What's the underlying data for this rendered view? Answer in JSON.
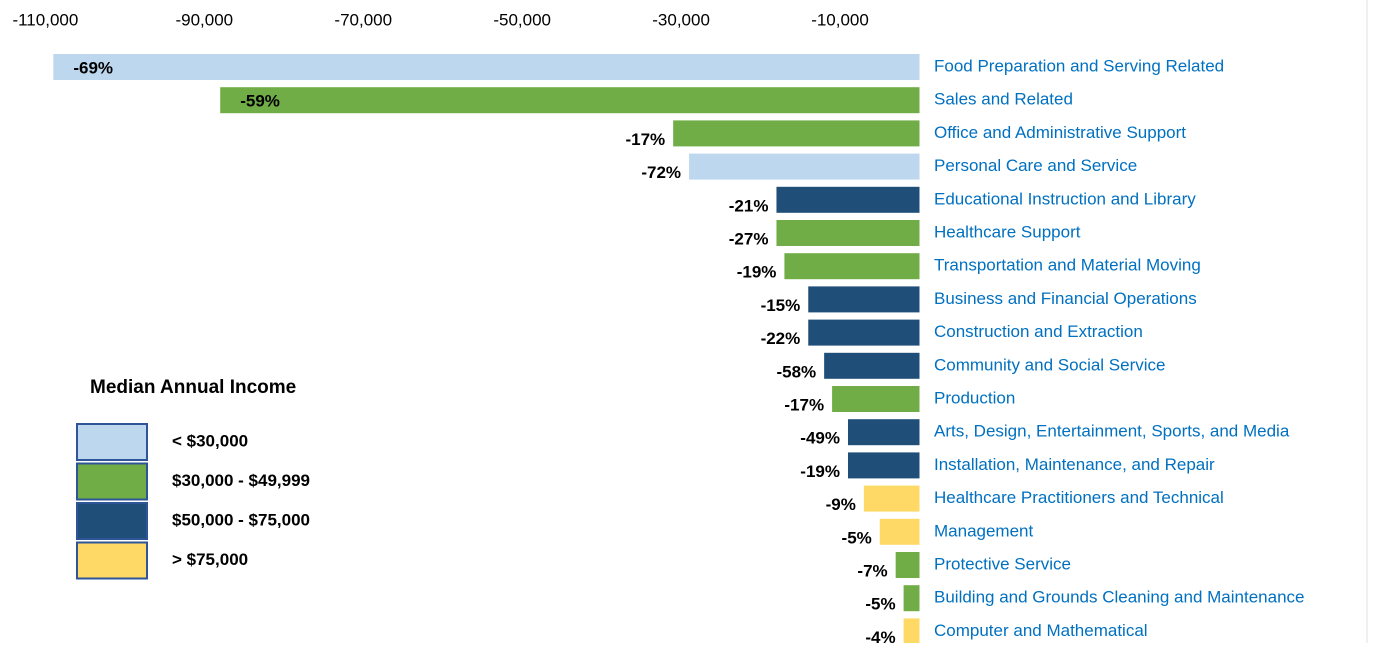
{
  "chart_data": {
    "type": "bar",
    "categories": [
      "Food Preparation and Serving Related",
      "Sales and Related",
      "Office and Administrative Support",
      "Personal Care and Service",
      "Educational Instruction and Library",
      "Healthcare Support",
      "Transportation and Material Moving",
      "Business and Financial Operations",
      "Construction and Extraction",
      "Community and Social Service",
      "Production",
      "Arts, Design, Entertainment, Sports, and Media",
      "Installation, Maintenance, and Repair",
      "Healthcare Practitioners and Technical",
      "Management",
      "Protective Service",
      "Building and Grounds Cleaning and Maintenance",
      "Computer and Mathematical"
    ],
    "values": [
      -109000,
      -88000,
      -31000,
      -29000,
      -18000,
      -18000,
      -17000,
      -14000,
      -14000,
      -12000,
      -11000,
      -9000,
      -9000,
      -7000,
      -5000,
      -3000,
      -2000,
      -2000
    ],
    "annotations": [
      "-69%",
      "-59%",
      "-17%",
      "-72%",
      "-21%",
      "-27%",
      "-19%",
      "-15%",
      "-22%",
      "-58%",
      "-17%",
      "-49%",
      "-19%",
      "-9%",
      "-5%",
      "-7%",
      "-5%",
      "-4%"
    ],
    "colors": [
      "#bdd7ee",
      "#70ad47",
      "#70ad47",
      "#bdd7ee",
      "#1f4e79",
      "#70ad47",
      "#70ad47",
      "#1f4e79",
      "#1f4e79",
      "#1f4e79",
      "#70ad47",
      "#1f4e79",
      "#1f4e79",
      "#ffd966",
      "#ffd966",
      "#70ad47",
      "#70ad47",
      "#ffd966"
    ],
    "xlim": [
      -112000,
      0
    ],
    "xticks": [
      {
        "value": -110000,
        "label": "-110,000"
      },
      {
        "value": -90000,
        "label": "-90,000"
      },
      {
        "value": -70000,
        "label": "-70,000"
      },
      {
        "value": -50000,
        "label": "-50,000"
      },
      {
        "value": -30000,
        "label": "-30,000"
      },
      {
        "value": -10000,
        "label": "-10,000"
      }
    ],
    "legend": {
      "title": "Median Annual Income",
      "items": [
        {
          "label": "< $30,000",
          "color": "#bdd7ee"
        },
        {
          "label": "$30,000 - $49,999",
          "color": "#70ad47"
        },
        {
          "label": "$50,000 - $75,000",
          "color": "#1f4e79"
        },
        {
          "label": "> $75,000",
          "color": "#ffd966"
        }
      ]
    }
  }
}
